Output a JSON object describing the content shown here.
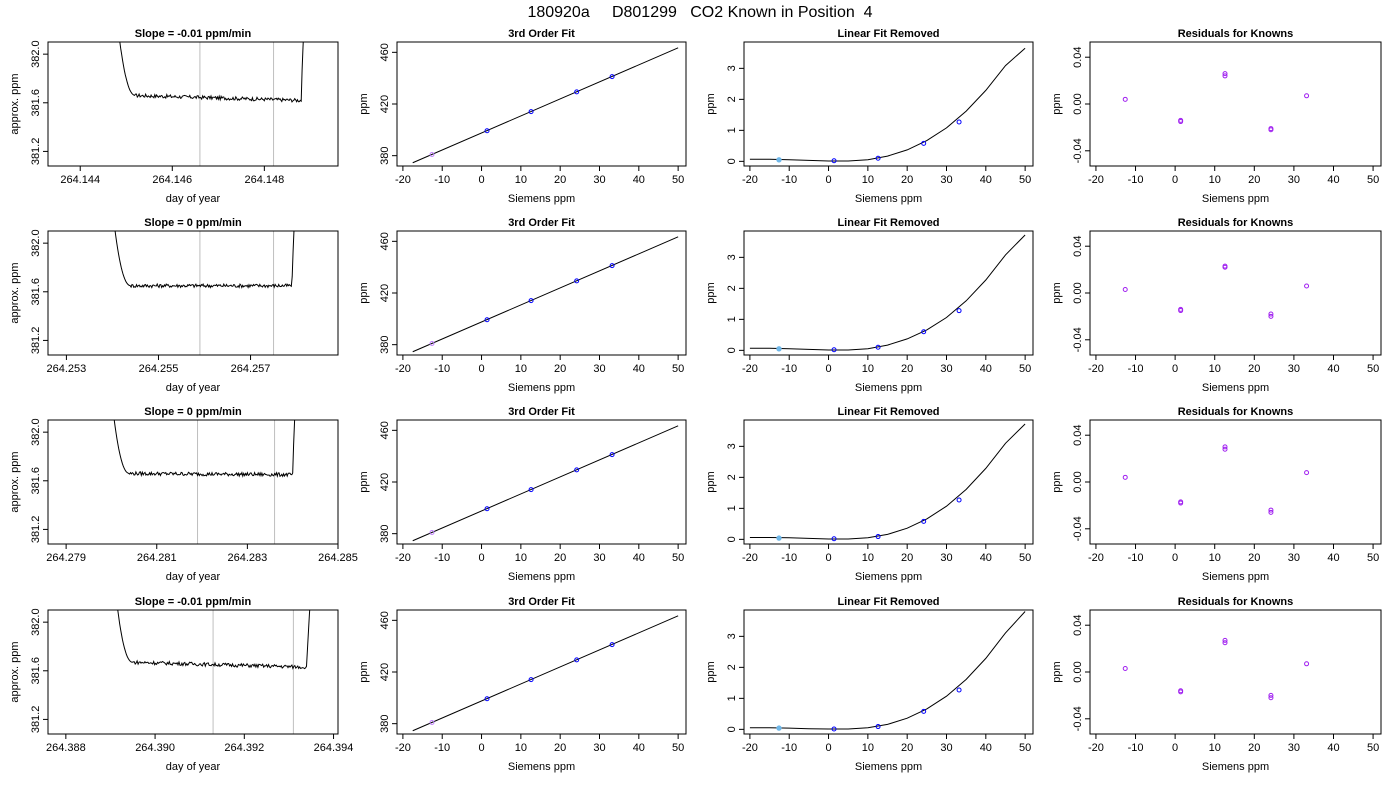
{
  "figure": {
    "title": "180920a     D801299   CO2 Known in Position  4"
  },
  "colors": {
    "line": "#000000",
    "point_outline": "#0000ff",
    "point_fill": "#a020f0",
    "vline": "#bebebe",
    "light_point": "#6fb7e8",
    "magenta_point": "#c080ff"
  },
  "rows": [
    {
      "trace": {
        "title": "Slope =  -0.01  ppm/min",
        "xlabel": "day of year",
        "ylabel": "approx. ppm",
        "xlim": [
          264.1433,
          264.1496
        ],
        "ylim": [
          381.08,
          382.1
        ],
        "xticks": [
          "264.144",
          "264.146",
          "264.148"
        ],
        "xtick_values": [
          264.144,
          264.146,
          264.148
        ],
        "yticks": [
          "381.2",
          "381.6",
          "382.0"
        ],
        "ytick_values": [
          381.2,
          381.6,
          382.0
        ],
        "vlines": [
          264.1466,
          264.1482
        ],
        "start": 264.1446,
        "end": 264.149,
        "plateau_start": 264.1452,
        "plateau_end": 264.1488,
        "level_start": 381.66,
        "level_end": 381.62
      },
      "fit": {
        "title": "3rd Order Fit",
        "xlabel": "Siemens ppm",
        "ylabel": "ppm",
        "xlim": [
          -21.5,
          52
        ],
        "ylim": [
          372,
          468
        ],
        "xticks": [
          "-20",
          "-10",
          "0",
          "10",
          "20",
          "30",
          "40",
          "50"
        ],
        "xtick_values": [
          -20,
          -10,
          0,
          10,
          20,
          30,
          40,
          50
        ],
        "yticks": [
          "380",
          "420",
          "460"
        ],
        "ytick_values": [
          380,
          420,
          460
        ],
        "line": [
          [
            -17.5,
            374.5
          ],
          [
            50,
            463.5
          ]
        ],
        "points": [
          [
            -12.6,
            380.9
          ],
          [
            1.4,
            399.3
          ],
          [
            12.6,
            414.1
          ],
          [
            24.2,
            429.4
          ],
          [
            33.2,
            441.2
          ]
        ]
      },
      "linear": {
        "title": "Linear Fit Removed",
        "xlabel": "Siemens ppm",
        "ylabel": "ppm",
        "xlim": [
          -21.5,
          52
        ],
        "ylim": [
          -0.15,
          3.85
        ],
        "xticks": [
          "-20",
          "-10",
          "0",
          "10",
          "20",
          "30",
          "40",
          "50"
        ],
        "xtick_values": [
          -20,
          -10,
          0,
          10,
          20,
          30,
          40,
          50
        ],
        "yticks": [
          "0",
          "1",
          "2",
          "3"
        ],
        "ytick_values": [
          0,
          1,
          2,
          3
        ],
        "curve_x": [
          -20,
          -15,
          -10,
          -5,
          0,
          5,
          10,
          15,
          20,
          25,
          30,
          35,
          40,
          45,
          50
        ],
        "curve_y": [
          0.07,
          0.07,
          0.05,
          0.03,
          0.01,
          0.01,
          0.05,
          0.17,
          0.37,
          0.67,
          1.08,
          1.62,
          2.29,
          3.09,
          3.65
        ],
        "points": [
          [
            -12.6,
            0.05
          ],
          [
            1.4,
            0.02
          ],
          [
            12.6,
            0.1
          ],
          [
            24.2,
            0.58
          ],
          [
            33.2,
            1.27
          ]
        ]
      },
      "residuals": {
        "title": "Residuals for Knowns",
        "xlabel": "Siemens ppm",
        "ylabel": "ppm",
        "xlim": [
          -21.5,
          52
        ],
        "ylim": [
          -0.053,
          0.053
        ],
        "xticks": [
          "-20",
          "-10",
          "0",
          "10",
          "20",
          "30",
          "40",
          "50"
        ],
        "xtick_values": [
          -20,
          -10,
          0,
          10,
          20,
          30,
          40,
          50
        ],
        "yticks": [
          "-0.04",
          "0.00",
          "0.04"
        ],
        "ytick_values": [
          -0.04,
          0.0,
          0.04
        ],
        "points": [
          [
            -12.6,
            0.004
          ],
          [
            1.4,
            -0.014
          ],
          [
            1.4,
            -0.015
          ],
          [
            12.6,
            0.026
          ],
          [
            12.6,
            0.024
          ],
          [
            24.2,
            -0.021
          ],
          [
            24.2,
            -0.022
          ],
          [
            33.2,
            0.007
          ]
        ]
      }
    },
    {
      "trace": {
        "title": "Slope =  0  ppm/min",
        "xlabel": "day of year",
        "ylabel": "approx. ppm",
        "xlim": [
          264.2526,
          264.2589
        ],
        "ylim": [
          381.08,
          382.1
        ],
        "xticks": [
          "264.253",
          "264.255",
          "264.257"
        ],
        "xtick_values": [
          264.253,
          264.255,
          264.257
        ],
        "yticks": [
          "381.2",
          "381.6",
          "382.0"
        ],
        "ytick_values": [
          381.2,
          381.6,
          382.0
        ],
        "vlines": [
          264.2559,
          264.2575
        ],
        "start": 264.2538,
        "end": 264.2581,
        "plateau_start": 264.2544,
        "plateau_end": 264.2579,
        "level_start": 381.65,
        "level_end": 381.65
      },
      "fit": {
        "title": "3rd Order Fit",
        "xlabel": "Siemens ppm",
        "ylabel": "ppm",
        "xlim": [
          -21.5,
          52
        ],
        "ylim": [
          372,
          468
        ],
        "xticks": [
          "-20",
          "-10",
          "0",
          "10",
          "20",
          "30",
          "40",
          "50"
        ],
        "xtick_values": [
          -20,
          -10,
          0,
          10,
          20,
          30,
          40,
          50
        ],
        "yticks": [
          "380",
          "420",
          "460"
        ],
        "ytick_values": [
          380,
          420,
          460
        ],
        "line": [
          [
            -17.5,
            374.5
          ],
          [
            50,
            463.5
          ]
        ],
        "points": [
          [
            -12.6,
            380.9
          ],
          [
            1.4,
            399.3
          ],
          [
            12.6,
            414.1
          ],
          [
            24.2,
            429.4
          ],
          [
            33.2,
            441.2
          ]
        ]
      },
      "linear": {
        "title": "Linear Fit Removed",
        "xlabel": "Siemens ppm",
        "ylabel": "ppm",
        "xlim": [
          -21.5,
          52
        ],
        "ylim": [
          -0.15,
          3.85
        ],
        "xticks": [
          "-20",
          "-10",
          "0",
          "10",
          "20",
          "30",
          "40",
          "50"
        ],
        "xtick_values": [
          -20,
          -10,
          0,
          10,
          20,
          30,
          40,
          50
        ],
        "yticks": [
          "0",
          "1",
          "2",
          "3"
        ],
        "ytick_values": [
          0,
          1,
          2,
          3
        ],
        "curve_x": [
          -20,
          -15,
          -10,
          -5,
          0,
          5,
          10,
          15,
          20,
          25,
          30,
          35,
          40,
          45,
          50
        ],
        "curve_y": [
          0.07,
          0.07,
          0.05,
          0.03,
          0.01,
          0.01,
          0.05,
          0.17,
          0.37,
          0.66,
          1.06,
          1.6,
          2.27,
          3.08,
          3.72
        ],
        "points": [
          [
            -12.6,
            0.05
          ],
          [
            1.4,
            0.02
          ],
          [
            12.6,
            0.1
          ],
          [
            24.2,
            0.6
          ],
          [
            33.2,
            1.28
          ]
        ]
      },
      "residuals": {
        "title": "Residuals for Knowns",
        "xlabel": "Siemens ppm",
        "ylabel": "ppm",
        "xlim": [
          -21.5,
          52
        ],
        "ylim": [
          -0.053,
          0.053
        ],
        "xticks": [
          "-20",
          "-10",
          "0",
          "10",
          "20",
          "30",
          "40",
          "50"
        ],
        "xtick_values": [
          -20,
          -10,
          0,
          10,
          20,
          30,
          40,
          50
        ],
        "yticks": [
          "-0.04",
          "0.00",
          "0.04"
        ],
        "ytick_values": [
          -0.04,
          0.0,
          0.04
        ],
        "points": [
          [
            -12.6,
            0.003
          ],
          [
            1.4,
            -0.014
          ],
          [
            1.4,
            -0.015
          ],
          [
            12.6,
            0.023
          ],
          [
            12.6,
            0.022
          ],
          [
            24.2,
            -0.018
          ],
          [
            24.2,
            -0.02
          ],
          [
            33.2,
            0.006
          ]
        ]
      }
    },
    {
      "trace": {
        "title": "Slope =  0  ppm/min",
        "xlabel": "day of year",
        "ylabel": "approx. ppm",
        "xlim": [
          264.2786,
          264.285
        ],
        "ylim": [
          381.08,
          382.1
        ],
        "xticks": [
          "264.279",
          "264.281",
          "264.283",
          "264.285"
        ],
        "xtick_values": [
          264.279,
          264.281,
          264.283,
          264.285
        ],
        "yticks": [
          "381.2",
          "381.6",
          "382.0"
        ],
        "ytick_values": [
          381.2,
          381.6,
          382.0
        ],
        "vlines": [
          264.2819,
          264.2836
        ],
        "start": 264.2798,
        "end": 264.2842,
        "plateau_start": 264.2804,
        "plateau_end": 264.284,
        "level_start": 381.66,
        "level_end": 381.65
      },
      "fit": {
        "title": "3rd Order Fit",
        "xlabel": "Siemens ppm",
        "ylabel": "ppm",
        "xlim": [
          -21.5,
          52
        ],
        "ylim": [
          372,
          468
        ],
        "xticks": [
          "-20",
          "-10",
          "0",
          "10",
          "20",
          "30",
          "40",
          "50"
        ],
        "xtick_values": [
          -20,
          -10,
          0,
          10,
          20,
          30,
          40,
          50
        ],
        "yticks": [
          "380",
          "420",
          "460"
        ],
        "ytick_values": [
          380,
          420,
          460
        ],
        "line": [
          [
            -17.5,
            374.5
          ],
          [
            50,
            463.5
          ]
        ],
        "points": [
          [
            -12.6,
            380.9
          ],
          [
            1.4,
            399.3
          ],
          [
            12.6,
            414.1
          ],
          [
            24.2,
            429.4
          ],
          [
            33.2,
            441.2
          ]
        ]
      },
      "linear": {
        "title": "Linear Fit Removed",
        "xlabel": "Siemens ppm",
        "ylabel": "ppm",
        "xlim": [
          -21.5,
          52
        ],
        "ylim": [
          -0.15,
          3.85
        ],
        "xticks": [
          "-20",
          "-10",
          "0",
          "10",
          "20",
          "30",
          "40",
          "50"
        ],
        "xtick_values": [
          -20,
          -10,
          0,
          10,
          20,
          30,
          40,
          50
        ],
        "yticks": [
          "0",
          "1",
          "2",
          "3"
        ],
        "ytick_values": [
          0,
          1,
          2,
          3
        ],
        "curve_x": [
          -20,
          -15,
          -10,
          -5,
          0,
          5,
          10,
          15,
          20,
          25,
          30,
          35,
          40,
          45,
          50
        ],
        "curve_y": [
          0.06,
          0.06,
          0.05,
          0.03,
          0.01,
          0.01,
          0.05,
          0.16,
          0.36,
          0.66,
          1.07,
          1.61,
          2.29,
          3.1,
          3.72
        ],
        "points": [
          [
            -12.6,
            0.04
          ],
          [
            1.4,
            0.02
          ],
          [
            12.6,
            0.09
          ],
          [
            24.2,
            0.58
          ],
          [
            33.2,
            1.27
          ]
        ]
      },
      "residuals": {
        "title": "Residuals for Knowns",
        "xlabel": "Siemens ppm",
        "ylabel": "ppm",
        "xlim": [
          -21.5,
          52
        ],
        "ylim": [
          -0.053,
          0.053
        ],
        "xticks": [
          "-20",
          "-10",
          "0",
          "10",
          "20",
          "30",
          "40",
          "50"
        ],
        "xtick_values": [
          -20,
          -10,
          0,
          10,
          20,
          30,
          40,
          50
        ],
        "yticks": [
          "-0.04",
          "0.00",
          "0.04"
        ],
        "ytick_values": [
          -0.04,
          0.0,
          0.04
        ],
        "points": [
          [
            -12.6,
            0.004
          ],
          [
            1.4,
            -0.017
          ],
          [
            1.4,
            -0.018
          ],
          [
            12.6,
            0.03
          ],
          [
            12.6,
            0.028
          ],
          [
            24.2,
            -0.024
          ],
          [
            24.2,
            -0.026
          ],
          [
            33.2,
            0.008
          ]
        ]
      }
    },
    {
      "trace": {
        "title": "Slope =  -0.01  ppm/min",
        "xlabel": "day of year",
        "ylabel": "approx. ppm",
        "xlim": [
          264.3876,
          264.3941
        ],
        "ylim": [
          381.08,
          382.1
        ],
        "xticks": [
          "264.388",
          "264.390",
          "264.392",
          "264.394"
        ],
        "xtick_values": [
          264.388,
          264.39,
          264.392,
          264.394
        ],
        "yticks": [
          "381.2",
          "381.6",
          "382.0"
        ],
        "ytick_values": [
          381.2,
          381.6,
          382.0
        ],
        "vlines": [
          264.3913,
          264.3931
        ],
        "start": 264.3889,
        "end": 264.3937,
        "plateau_start": 264.3895,
        "plateau_end": 264.3934,
        "level_start": 381.67,
        "level_end": 381.63
      },
      "fit": {
        "title": "3rd Order Fit",
        "xlabel": "Siemens ppm",
        "ylabel": "ppm",
        "xlim": [
          -21.5,
          52
        ],
        "ylim": [
          372,
          468
        ],
        "xticks": [
          "-20",
          "-10",
          "0",
          "10",
          "20",
          "30",
          "40",
          "50"
        ],
        "xtick_values": [
          -20,
          -10,
          0,
          10,
          20,
          30,
          40,
          50
        ],
        "yticks": [
          "380",
          "420",
          "460"
        ],
        "ytick_values": [
          380,
          420,
          460
        ],
        "line": [
          [
            -17.5,
            374.5
          ],
          [
            50,
            463.5
          ]
        ],
        "points": [
          [
            -12.6,
            380.9
          ],
          [
            1.4,
            399.3
          ],
          [
            12.6,
            414.1
          ],
          [
            24.2,
            429.4
          ],
          [
            33.2,
            441.2
          ]
        ]
      },
      "linear": {
        "title": "Linear Fit Removed",
        "xlabel": "Siemens ppm",
        "ylabel": "ppm",
        "xlim": [
          -21.5,
          52
        ],
        "ylim": [
          -0.15,
          3.85
        ],
        "xticks": [
          "-20",
          "-10",
          "0",
          "10",
          "20",
          "30",
          "40",
          "50"
        ],
        "xtick_values": [
          -20,
          -10,
          0,
          10,
          20,
          30,
          40,
          50
        ],
        "yticks": [
          "0",
          "1",
          "2",
          "3"
        ],
        "ytick_values": [
          0,
          1,
          2,
          3
        ],
        "curve_x": [
          -20,
          -15,
          -10,
          -5,
          0,
          5,
          10,
          15,
          20,
          25,
          30,
          35,
          40,
          45,
          50
        ],
        "curve_y": [
          0.05,
          0.05,
          0.04,
          0.02,
          0.01,
          0.01,
          0.05,
          0.16,
          0.36,
          0.66,
          1.07,
          1.61,
          2.29,
          3.11,
          3.8
        ],
        "points": [
          [
            -12.6,
            0.04
          ],
          [
            1.4,
            0.01
          ],
          [
            12.6,
            0.09
          ],
          [
            24.2,
            0.58
          ],
          [
            33.2,
            1.27
          ]
        ]
      },
      "residuals": {
        "title": "Residuals for Knowns",
        "xlabel": "Siemens ppm",
        "ylabel": "ppm",
        "xlim": [
          -21.5,
          52
        ],
        "ylim": [
          -0.053,
          0.053
        ],
        "xticks": [
          "-20",
          "-10",
          "0",
          "10",
          "20",
          "30",
          "40",
          "50"
        ],
        "xtick_values": [
          -20,
          -10,
          0,
          10,
          20,
          30,
          40,
          50
        ],
        "yticks": [
          "-0.04",
          "0.00",
          "0.04"
        ],
        "ytick_values": [
          -0.04,
          0.0,
          0.04
        ],
        "points": [
          [
            -12.6,
            0.003
          ],
          [
            1.4,
            -0.016
          ],
          [
            1.4,
            -0.017
          ],
          [
            12.6,
            0.027
          ],
          [
            12.6,
            0.025
          ],
          [
            24.2,
            -0.02
          ],
          [
            24.2,
            -0.022
          ],
          [
            33.2,
            0.007
          ]
        ]
      }
    }
  ]
}
